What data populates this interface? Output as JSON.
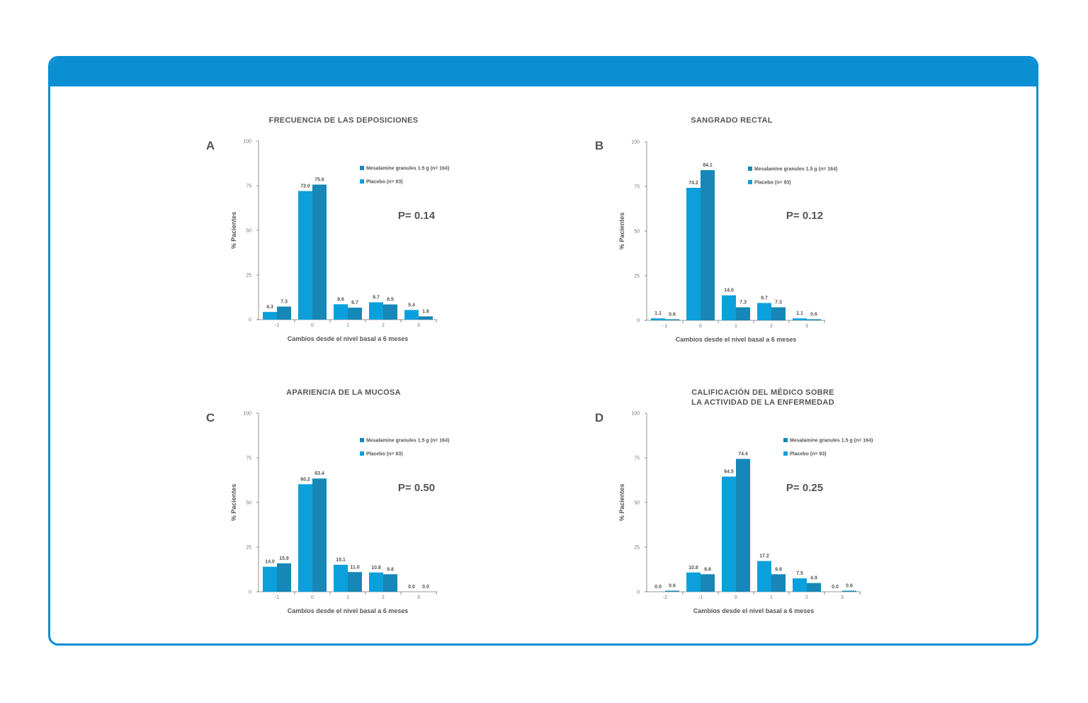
{
  "colors": {
    "frame": "#0a8fd3",
    "mesalamine": "#1687b6",
    "placebo": "#0ba0dc",
    "text": "#555555"
  },
  "legend": {
    "mesalamine": "Mesalamine granules 1.5 g (n= 164)",
    "placebo": "Placebo (n= 93)"
  },
  "chart_data": [
    {
      "type": "bar",
      "panel": "A",
      "title": [
        "FRECUENCIA DE LAS DEPOSICIONES"
      ],
      "xlabel": "Cambios desde el nivel basal a 6 meses",
      "ylabel": "% Pacientes",
      "yticks": [
        0,
        25,
        50,
        75,
        100
      ],
      "ylim": [
        0,
        100
      ],
      "categories": [
        "-1",
        "0",
        "1",
        "2",
        "3"
      ],
      "series": [
        {
          "name": "Placebo (n= 93)",
          "values": [
            4.3,
            72.0,
            8.6,
            9.7,
            5.4
          ]
        },
        {
          "name": "Mesalamine granules 1.5 g (n= 164)",
          "values": [
            7.3,
            75.6,
            6.7,
            8.5,
            1.8
          ]
        }
      ],
      "annotation": "P= 0.14",
      "legend_position": "top-right"
    },
    {
      "type": "bar",
      "panel": "B",
      "title": [
        "SANGRADO RECTAL"
      ],
      "xlabel": "Cambios desde el nivel basal a 6 meses",
      "ylabel": "% Pacientes",
      "yticks": [
        0,
        25,
        50,
        75,
        100
      ],
      "ylim": [
        0,
        100
      ],
      "categories": [
        "-1",
        "0",
        "1",
        "2",
        "3"
      ],
      "series": [
        {
          "name": "Placebo (n= 93)",
          "values": [
            1.1,
            74.2,
            14.0,
            9.7,
            1.1
          ]
        },
        {
          "name": "Mesalamine granules 1.5 g (n= 164)",
          "values": [
            0.6,
            84.1,
            7.3,
            7.3,
            0.6
          ]
        }
      ],
      "annotation": "P= 0.12",
      "legend_position": "top-right"
    },
    {
      "type": "bar",
      "panel": "C",
      "title": [
        "APARIENCIA DE LA MUCOSA"
      ],
      "xlabel": "Cambios desde el nivel basal a 6 meses",
      "ylabel": "% Pacientes",
      "yticks": [
        0,
        25,
        50,
        75,
        100
      ],
      "ylim": [
        0,
        100
      ],
      "categories": [
        "-1",
        "0",
        "1",
        "2",
        "3"
      ],
      "series": [
        {
          "name": "Placebo (n= 93)",
          "values": [
            14.0,
            60.2,
            15.1,
            10.8,
            0.0
          ]
        },
        {
          "name": "Mesalamine granules 1.5 g (n= 164)",
          "values": [
            15.9,
            63.4,
            11.0,
            9.8,
            0.0
          ]
        }
      ],
      "annotation": "P= 0.50",
      "legend_position": "top-right"
    },
    {
      "type": "bar",
      "panel": "D",
      "title": [
        "CALIFICACIÓN DEL MÉDICO SOBRE",
        "LA ACTIVIDAD DE LA ENFERMEDAD"
      ],
      "xlabel": "Cambios desde el nivel basal a 6 meses",
      "ylabel": "% Pacientes",
      "yticks": [
        0,
        25,
        50,
        75,
        100
      ],
      "ylim": [
        0,
        100
      ],
      "categories": [
        "-2",
        "-1",
        "0",
        "1",
        "2",
        "3"
      ],
      "series": [
        {
          "name": "Placebo (n= 93)",
          "values": [
            0.0,
            10.8,
            64.5,
            17.2,
            7.5,
            0.0
          ]
        },
        {
          "name": "Mesalamine granules 1.5 g (n= 164)",
          "values": [
            0.6,
            9.8,
            74.4,
            9.8,
            4.9,
            0.6
          ]
        }
      ],
      "annotation": "P= 0.25",
      "legend_position": "top-right"
    }
  ]
}
